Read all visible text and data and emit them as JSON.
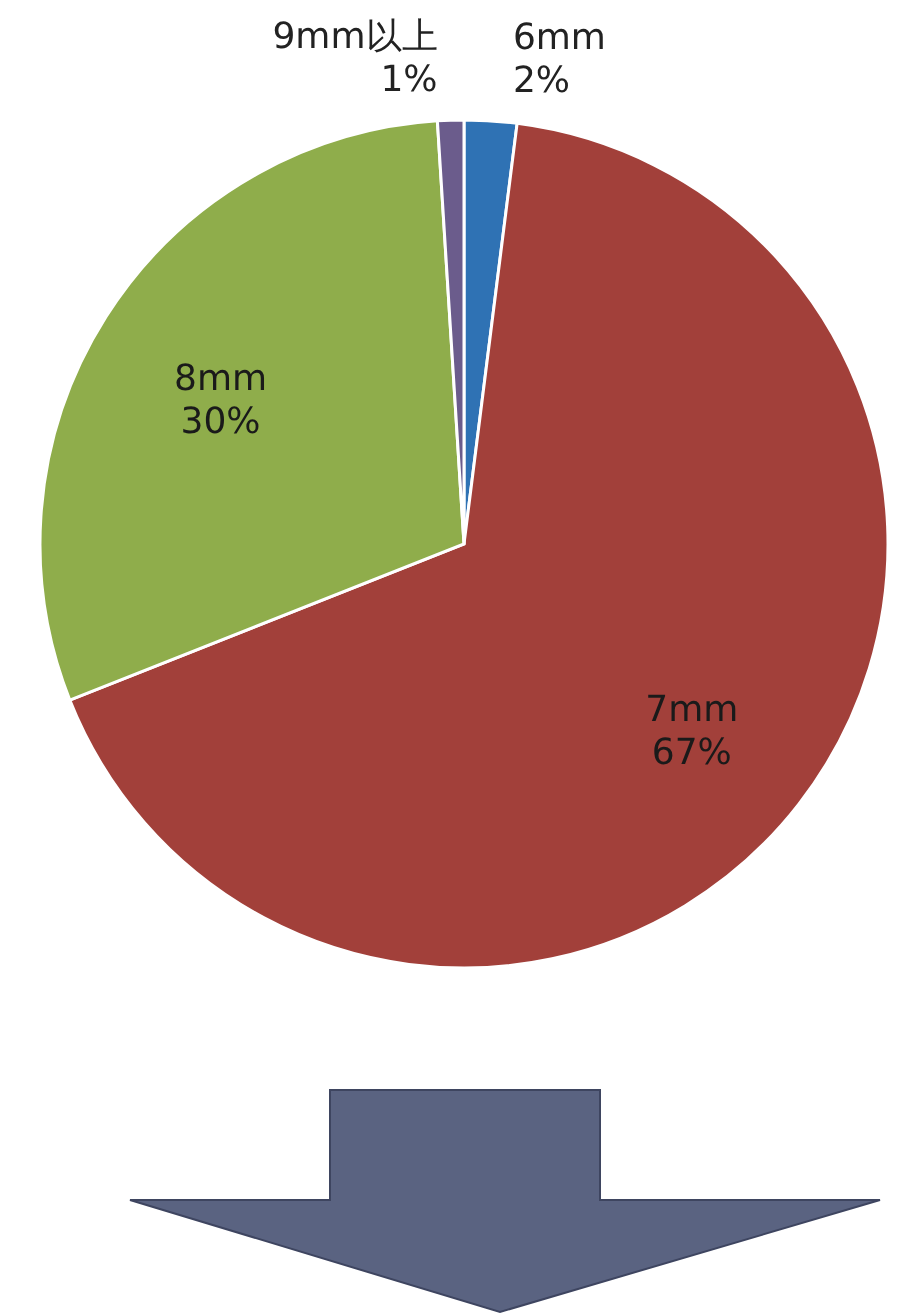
{
  "chart_data": {
    "type": "pie",
    "categories": [
      "6mm",
      "7mm",
      "8mm",
      "9mm以上"
    ],
    "values": [
      2,
      67,
      30,
      1
    ],
    "colors": [
      "#2f72b4",
      "#a2403a",
      "#8fad4b",
      "#6b5c8c"
    ],
    "value_labels": [
      "2%",
      "67%",
      "30%",
      "1%"
    ]
  }
}
